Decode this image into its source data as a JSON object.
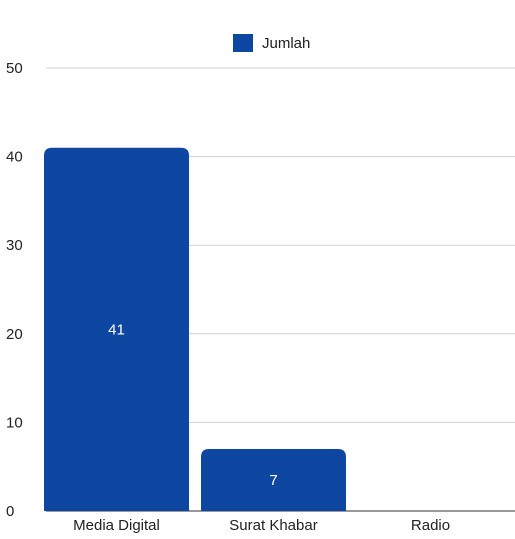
{
  "chart_data": {
    "type": "bar",
    "categories": [
      "Media Digital",
      "Surat Khabar",
      "Radio"
    ],
    "series": [
      {
        "name": "Jumlah",
        "values": [
          41,
          7,
          0
        ],
        "color": "#0d47a1"
      }
    ],
    "data_labels": [
      "41",
      "7",
      ""
    ],
    "ylim": [
      0,
      50
    ],
    "yticks": [
      0,
      10,
      20,
      30,
      40,
      50
    ],
    "grid": true,
    "legend_position": "top-center"
  }
}
